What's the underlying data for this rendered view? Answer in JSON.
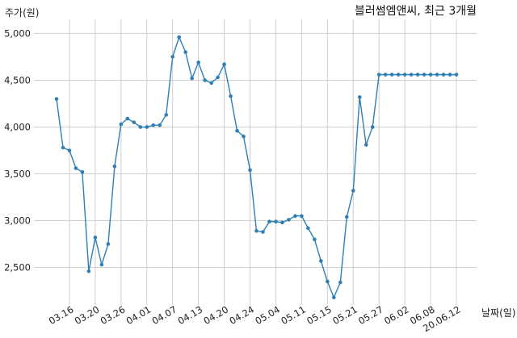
{
  "chart_data": {
    "type": "line",
    "title": "블러썸엠앤씨, 최근 3개월",
    "ylabel": "주가(원)",
    "xlabel": "날짜(일)",
    "ylim": [
      2100,
      5150
    ],
    "yticks": [
      2500,
      3000,
      3500,
      4000,
      4500,
      5000
    ],
    "ytick_labels": [
      "2,500",
      "3,000",
      "3,500",
      "4,000",
      "4,500",
      "5,000"
    ],
    "xtick_labels": [
      "03.16",
      "03.20",
      "03.26",
      "04.01",
      "04.07",
      "04.13",
      "04.20",
      "04.24",
      "05.04",
      "05.11",
      "05.15",
      "05.21",
      "05.27",
      "06.02",
      "06.08",
      "20.06.12"
    ],
    "xtick_positions": [
      2,
      6,
      10,
      14,
      18,
      22,
      26,
      30,
      34,
      38,
      42,
      46,
      50,
      54,
      58,
      62
    ],
    "x": [
      0,
      1,
      2,
      3,
      4,
      5,
      6,
      7,
      8,
      9,
      10,
      11,
      12,
      13,
      14,
      15,
      16,
      17,
      18,
      19,
      20,
      21,
      22,
      23,
      24,
      25,
      26,
      27,
      28,
      29,
      30,
      31,
      32,
      33,
      34,
      35,
      36,
      37,
      38,
      39,
      40,
      41,
      42,
      43,
      44,
      45,
      46,
      47,
      48,
      49,
      50,
      51,
      52,
      53,
      54,
      55,
      56,
      57,
      58,
      59,
      60,
      61,
      62
    ],
    "series": [
      {
        "color": "#2f7fb5",
        "values": [
          4300,
          3780,
          3750,
          3560,
          3520,
          2460,
          2820,
          2530,
          2750,
          3580,
          4030,
          4090,
          4050,
          4000,
          4000,
          4020,
          4020,
          4130,
          4750,
          4960,
          4800,
          4520,
          4690,
          4500,
          4470,
          4530,
          4670,
          4330,
          3960,
          3900,
          3540,
          2890,
          2880,
          2990,
          2990,
          2980,
          3010,
          3050,
          3050,
          2920,
          2800,
          2570,
          2350,
          2180,
          2340,
          3040,
          3320,
          4320,
          3810,
          4000,
          4560,
          4560,
          4560,
          4560,
          4560,
          4560,
          4560,
          4560,
          4560,
          4560,
          4560,
          4560,
          4560
        ]
      }
    ],
    "grid": true
  }
}
